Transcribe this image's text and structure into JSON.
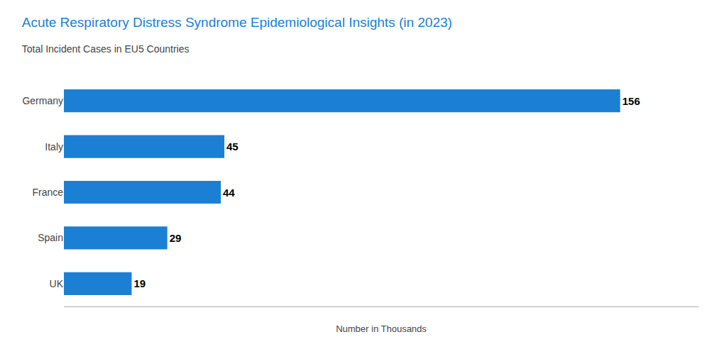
{
  "chart_data": {
    "type": "bar",
    "orientation": "horizontal",
    "title": "Acute Respiratory Distress Syndrome Epidemiological Insights (in 2023)",
    "subtitle": "Total Incident Cases in EU5 Countries",
    "xlabel": "Number in Thousands",
    "categories": [
      "Germany",
      "Italy",
      "France",
      "Spain",
      "UK"
    ],
    "values": [
      156,
      45,
      44,
      29,
      19
    ],
    "color": "#1b7fd4",
    "xlim": [
      0,
      178
    ],
    "xticks": [],
    "tick_labels": "y",
    "data_labels": true,
    "grid": false
  }
}
